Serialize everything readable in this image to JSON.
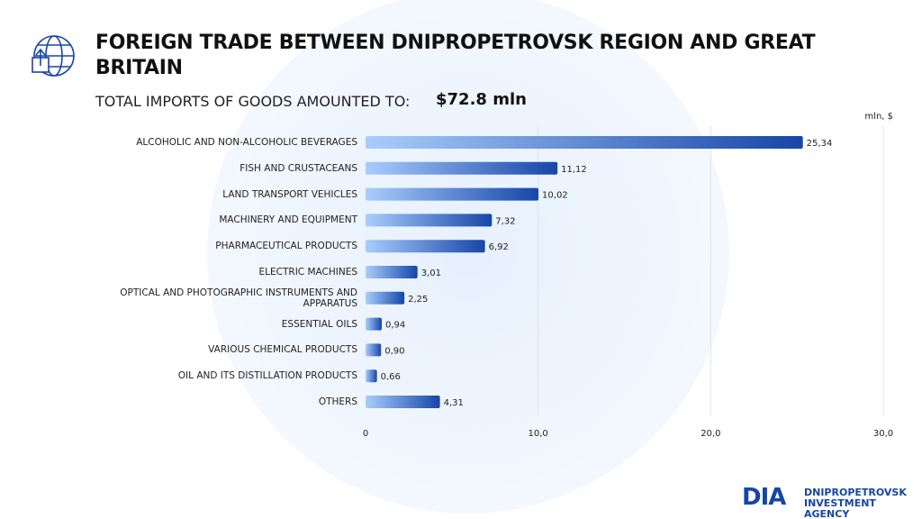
{
  "chart_data": {
    "type": "bar",
    "orientation": "horizontal",
    "title": "FOREIGN TRADE BETWEEN DNIPROPETROVSK REGION AND GREAT BRITAIN",
    "subtitle": "TOTAL IMPORTS OF GOODS AMOUNTED TO:",
    "subtitle_value": "$72.8 mln",
    "unit_label": "mln, $",
    "categories": [
      "ALCOHOLIC AND NON-ALCOHOLIC BEVERAGES",
      "FISH AND CRUSTACEANS",
      "LAND TRANSPORT VEHICLES",
      "MACHINERY AND EQUIPMENT",
      "PHARMACEUTICAL PRODUCTS",
      "ELECTRIC MACHINES",
      "OPTICAL AND PHOTOGRAPHIC INSTRUMENTS AND APPARATUS",
      "ESSENTIAL OILS",
      "VARIOUS CHEMICAL PRODUCTS",
      "OIL AND ITS DISTILLATION PRODUCTS",
      "OTHERS"
    ],
    "values": [
      25.34,
      11.12,
      10.02,
      7.32,
      6.92,
      3.01,
      2.25,
      0.94,
      0.9,
      0.66,
      4.31
    ],
    "value_labels": [
      "25,34",
      "11,12",
      "10,02",
      "7,32",
      "6,92",
      "3,01",
      "2,25",
      "0,94",
      "0,90",
      "0,66",
      "4,31"
    ],
    "colors": [
      "#a9cdfc",
      "#1646a8"
    ],
    "xlim": [
      0,
      30
    ],
    "xticks": [
      0,
      {
        "value": 10,
        "label": "10,0"
      },
      {
        "value": 20,
        "label": "20,0"
      },
      {
        "value": 30,
        "label": "30,0"
      }
    ],
    "grid": true
  },
  "logo": {
    "mark": "DIA",
    "name_line1": "DNIPROPETROVSK",
    "name_line2": "INVESTMENT AGENCY"
  }
}
